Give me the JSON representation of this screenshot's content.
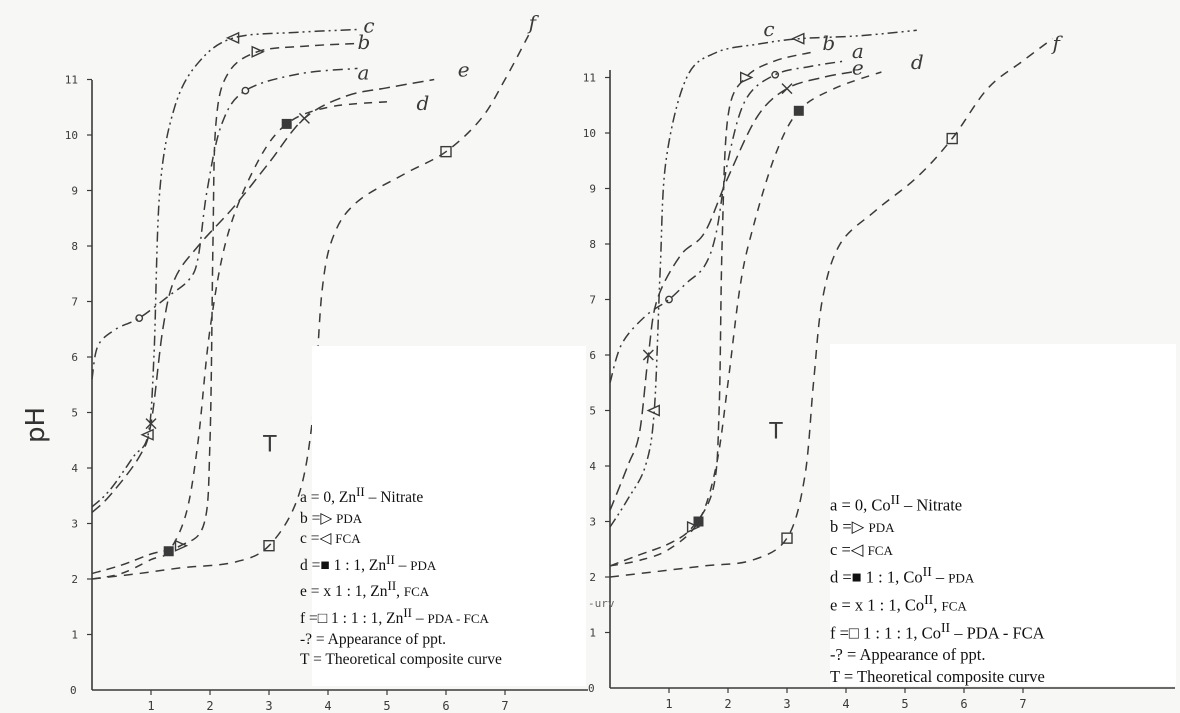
{
  "chart_data": [
    {
      "type": "line",
      "panel": "left",
      "metal": "Zn(II)",
      "title": "",
      "xlabel": "",
      "ylabel": "pH",
      "xlim": [
        0,
        7.5
      ],
      "ylim": [
        0,
        11.5
      ],
      "x_ticks": [
        1,
        2,
        3,
        4,
        5,
        6,
        7
      ],
      "y_ticks": [
        1,
        2,
        3,
        4,
        5,
        6,
        7,
        8,
        9,
        10,
        11
      ],
      "grid": false,
      "series": [
        {
          "name": "a",
          "marker": "circle",
          "label_at": [
            4.5,
            11.0
          ],
          "points": [
            [
              0,
              5.6
            ],
            [
              0.1,
              6.2
            ],
            [
              0.4,
              6.5
            ],
            [
              0.8,
              6.7
            ],
            [
              1.3,
              7.1
            ],
            [
              1.65,
              7.4
            ],
            [
              1.8,
              7.8
            ],
            [
              1.95,
              9.0
            ],
            [
              2.2,
              10.2
            ],
            [
              2.6,
              10.8
            ],
            [
              3.5,
              11.1
            ],
            [
              4.5,
              11.2
            ]
          ]
        },
        {
          "name": "b",
          "marker": "right-triangle",
          "label_at": [
            4.5,
            11.55
          ],
          "points": [
            [
              0,
              2.1
            ],
            [
              0.5,
              2.25
            ],
            [
              1.0,
              2.45
            ],
            [
              1.5,
              2.6
            ],
            [
              1.9,
              3.0
            ],
            [
              2.0,
              4.5
            ],
            [
              2.05,
              8.0
            ],
            [
              2.1,
              10.2
            ],
            [
              2.3,
              11.1
            ],
            [
              2.8,
              11.5
            ],
            [
              3.6,
              11.6
            ],
            [
              4.5,
              11.65
            ]
          ]
        },
        {
          "name": "c",
          "marker": "left-triangle",
          "label_at": [
            4.6,
            11.85
          ],
          "points": [
            [
              0,
              3.3
            ],
            [
              0.3,
              3.6
            ],
            [
              0.7,
              4.2
            ],
            [
              0.95,
              4.6
            ],
            [
              1.05,
              6.0
            ],
            [
              1.15,
              9.0
            ],
            [
              1.4,
              10.5
            ],
            [
              1.8,
              11.3
            ],
            [
              2.4,
              11.75
            ],
            [
              3.5,
              11.85
            ],
            [
              4.5,
              11.9
            ]
          ]
        },
        {
          "name": "d",
          "marker": "filled-square",
          "label_at": [
            5.5,
            10.45
          ],
          "points": [
            [
              0,
              2.0
            ],
            [
              0.5,
              2.1
            ],
            [
              1.0,
              2.35
            ],
            [
              1.3,
              2.5
            ],
            [
              1.6,
              3.2
            ],
            [
              1.8,
              4.5
            ],
            [
              2.0,
              6.5
            ],
            [
              2.3,
              8.2
            ],
            [
              2.8,
              9.5
            ],
            [
              3.3,
              10.2
            ],
            [
              4.0,
              10.5
            ],
            [
              5.0,
              10.6
            ]
          ]
        },
        {
          "name": "e",
          "marker": "x",
          "label_at": [
            6.2,
            11.05
          ],
          "points": [
            [
              0,
              3.2
            ],
            [
              0.3,
              3.5
            ],
            [
              0.8,
              4.2
            ],
            [
              1.0,
              4.8
            ],
            [
              1.2,
              6.5
            ],
            [
              1.4,
              7.4
            ],
            [
              1.8,
              8.0
            ],
            [
              2.4,
              8.7
            ],
            [
              3.0,
              9.5
            ],
            [
              3.6,
              10.3
            ],
            [
              4.3,
              10.7
            ],
            [
              5.0,
              10.85
            ],
            [
              5.8,
              11.0
            ]
          ]
        },
        {
          "name": "f",
          "marker": "open-square",
          "label_at": [
            7.4,
            11.9
          ],
          "points": [
            [
              0,
              2.0
            ],
            [
              0.8,
              2.1
            ],
            [
              1.5,
              2.2
            ],
            [
              2.4,
              2.3
            ],
            [
              3.0,
              2.6
            ],
            [
              3.5,
              3.5
            ],
            [
              3.75,
              5.0
            ],
            [
              3.9,
              7.2
            ],
            [
              4.1,
              8.2
            ],
            [
              4.5,
              8.8
            ],
            [
              5.3,
              9.3
            ],
            [
              6.0,
              9.7
            ],
            [
              6.6,
              10.3
            ],
            [
              7.0,
              11.0
            ],
            [
              7.4,
              11.8
            ]
          ]
        }
      ],
      "annotations": [
        {
          "text": "T",
          "x": 2.9,
          "y": 4.3
        }
      ],
      "legend": {
        "placement": "bottom-right",
        "entries": [
          "a = 0, Zn<sup>II</sup> – Nitrate",
          "b =▷ <span class=\"sm\">PDA</span>",
          "c =◁ <span class=\"sm\">FCA</span>",
          "d =■ 1 : 1, Zn<sup>II</sup> – <span class=\"sm\">PDA</span>",
          "e = x 1 : 1, Zn<sup>II</sup>, <span class=\"sm\">FCA</span>",
          "f =□ 1 : 1 : 1, Zn<sup>II</sup> – <span class=\"sm\">PDA - FCA</span>",
          "-? = Appearance of ppt.",
          "T = Theoretical composite curve"
        ]
      }
    },
    {
      "type": "line",
      "panel": "right",
      "metal": "Co(II)",
      "title": "",
      "xlabel": "",
      "ylabel": "",
      "xlim": [
        0,
        7.5
      ],
      "ylim": [
        0,
        11.5
      ],
      "x_ticks": [
        1,
        2,
        3,
        4,
        5,
        6,
        7
      ],
      "y_ticks": [
        1,
        2,
        3,
        4,
        5,
        6,
        7,
        8,
        9,
        10,
        11
      ],
      "grid": false,
      "series": [
        {
          "name": "a",
          "marker": "circle",
          "label_at": [
            4.1,
            11.35
          ],
          "points": [
            [
              0,
              5.5
            ],
            [
              0.2,
              6.2
            ],
            [
              0.6,
              6.7
            ],
            [
              1.0,
              7.0
            ],
            [
              1.3,
              7.3
            ],
            [
              1.6,
              7.6
            ],
            [
              1.8,
              8.2
            ],
            [
              2.0,
              9.5
            ],
            [
              2.3,
              10.6
            ],
            [
              2.8,
              11.05
            ],
            [
              3.4,
              11.2
            ],
            [
              4.0,
              11.3
            ]
          ]
        },
        {
          "name": "b",
          "marker": "right-triangle",
          "label_at": [
            3.6,
            11.5
          ],
          "points": [
            [
              0,
              2.2
            ],
            [
              0.5,
              2.4
            ],
            [
              1.0,
              2.6
            ],
            [
              1.4,
              2.9
            ],
            [
              1.75,
              3.6
            ],
            [
              1.85,
              5.0
            ],
            [
              1.9,
              8.0
            ],
            [
              2.0,
              10.3
            ],
            [
              2.3,
              11.0
            ],
            [
              2.8,
              11.3
            ],
            [
              3.4,
              11.45
            ]
          ]
        },
        {
          "name": "c",
          "marker": "left-triangle",
          "label_at": [
            2.6,
            11.75
          ],
          "points": [
            [
              0,
              2.9
            ],
            [
              0.3,
              3.4
            ],
            [
              0.6,
              4.0
            ],
            [
              0.75,
              5.0
            ],
            [
              0.85,
              7.5
            ],
            [
              0.95,
              9.5
            ],
            [
              1.3,
              11.0
            ],
            [
              1.8,
              11.45
            ],
            [
              2.5,
              11.6
            ],
            [
              3.2,
              11.7
            ],
            [
              4.2,
              11.75
            ],
            [
              5.2,
              11.85
            ]
          ]
        },
        {
          "name": "d",
          "marker": "filled-square",
          "label_at": [
            5.1,
            11.15
          ],
          "points": [
            [
              0,
              2.2
            ],
            [
              0.5,
              2.3
            ],
            [
              1.0,
              2.5
            ],
            [
              1.5,
              3.0
            ],
            [
              1.8,
              4.0
            ],
            [
              2.0,
              5.5
            ],
            [
              2.2,
              7.2
            ],
            [
              2.4,
              8.2
            ],
            [
              2.8,
              9.6
            ],
            [
              3.2,
              10.4
            ],
            [
              3.8,
              10.8
            ],
            [
              4.6,
              11.1
            ]
          ]
        },
        {
          "name": "e",
          "marker": "x",
          "label_at": [
            4.1,
            11.05
          ],
          "points": [
            [
              0,
              3.2
            ],
            [
              0.3,
              4.0
            ],
            [
              0.5,
              4.6
            ],
            [
              0.65,
              6.0
            ],
            [
              0.8,
              7.0
            ],
            [
              1.2,
              7.8
            ],
            [
              1.6,
              8.2
            ],
            [
              2.0,
              9.2
            ],
            [
              2.5,
              10.3
            ],
            [
              3.0,
              10.8
            ],
            [
              3.6,
              11.0
            ],
            [
              4.1,
              11.1
            ]
          ]
        },
        {
          "name": "f",
          "marker": "open-square",
          "label_at": [
            7.5,
            11.5
          ],
          "points": [
            [
              0,
              2.0
            ],
            [
              0.8,
              2.1
            ],
            [
              1.6,
              2.2
            ],
            [
              2.4,
              2.3
            ],
            [
              3.0,
              2.7
            ],
            [
              3.3,
              3.8
            ],
            [
              3.45,
              5.5
            ],
            [
              3.6,
              7.0
            ],
            [
              3.9,
              8.0
            ],
            [
              4.5,
              8.6
            ],
            [
              5.2,
              9.2
            ],
            [
              5.8,
              9.9
            ],
            [
              6.4,
              10.8
            ],
            [
              7.0,
              11.3
            ],
            [
              7.5,
              11.7
            ]
          ]
        }
      ],
      "annotations": [
        {
          "text": "T",
          "x": 2.7,
          "y": 4.5
        }
      ],
      "legend": {
        "placement": "bottom-right",
        "entries": [
          "a = 0, Co<sup>II</sup> – Nitrate",
          "b =▷ <span class=\"sm\">PDA</span>",
          "c =◁ <span class=\"sm\">FCA</span>",
          "d =■ 1 : 1, Co<sup>II</sup> – <span class=\"sm\">PDA</span>",
          "e = x 1 : 1, Co<sup>II</sup>, <span class=\"sm\">FCA</span>",
          "f =□ 1 : 1 : 1, Co<sup>II</sup> – PDA - FCA",
          "-? = Appearance of ppt.",
          "T = Theoretical composite curve"
        ]
      }
    }
  ],
  "stray_text": "-urv",
  "colors": {
    "ink": "#3a3a3a",
    "paper": "#f7f7f5",
    "legend_bg": "#ffffff"
  }
}
